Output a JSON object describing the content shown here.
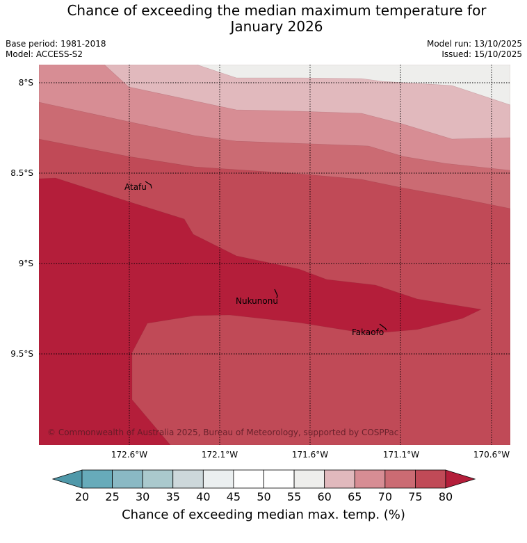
{
  "title": {
    "line1": "Chance of exceeding the median maximum temperature for",
    "line2": "January 2026"
  },
  "meta": {
    "base_period": "Base period: 1981-2018",
    "model": "Model: ACCESS-S2",
    "model_run": "Model run: 13/10/2025",
    "issued": "Issued: 15/10/2025"
  },
  "map": {
    "lat_labels": [
      "8°S",
      "8.5°S",
      "9°S",
      "9.5°S"
    ],
    "lon_labels": [
      "172.6°W",
      "172.1°W",
      "171.6°W",
      "171.1°W",
      "170.6°W"
    ],
    "places": [
      "Atafu",
      "Nukunonu",
      "Fakaofo"
    ],
    "copyright": "© Commonwealth of Australia 2025, Bureau of Meteorology, supported by COSPPac",
    "contour_colors": [
      "#eeeeec",
      "#e1b9bd",
      "#d78d94",
      "#cb6b73",
      "#c04a57",
      "#b41e3a"
    ]
  },
  "colorbar": {
    "ticks": [
      "20",
      "25",
      "30",
      "35",
      "40",
      "45",
      "50",
      "55",
      "60",
      "65",
      "70",
      "75",
      "80"
    ],
    "colors": [
      "#67abba",
      "#8ab9c4",
      "#aac9cd",
      "#cdd8db",
      "#ebeff0",
      "#ffffff",
      "#ffffff",
      "#eeeeec",
      "#e1b9bd",
      "#d78d94",
      "#cb6b73",
      "#c04a57"
    ],
    "under_color": "#4f98a9",
    "over_color": "#b41e3a",
    "label": "Chance of exceeding median max. temp. (%)"
  }
}
